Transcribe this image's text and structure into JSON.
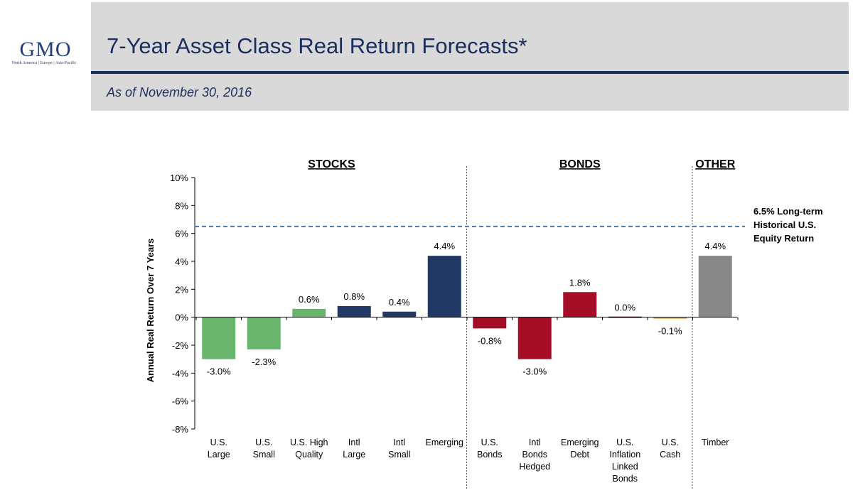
{
  "logo": {
    "text": "GMO",
    "subtext": "North America | Europe | Asia-Pacific"
  },
  "header": {
    "title": "7-Year Asset Class Real Return Forecasts*",
    "subtitle": "As of November 30, 2016"
  },
  "colors": {
    "header_bg": "#d9d9d9",
    "navy": "#1b2d5c",
    "green": "#6ab56d",
    "darkblue": "#1f3864",
    "red": "#a50d26",
    "gray": "#888888",
    "orange": "#e0a030",
    "dashed": "#4b7aa8"
  },
  "chart_data": {
    "type": "bar",
    "ylabel": "Annual Real Return Over 7 Years",
    "ylim": [
      -8,
      10
    ],
    "yticks": [
      10,
      8,
      6,
      4,
      2,
      0,
      -2,
      -4,
      -6,
      -8
    ],
    "ytick_labels": [
      "10%",
      "8%",
      "6%",
      "4%",
      "2%",
      "0%",
      "-2%",
      "-4%",
      "-6%",
      "-8%"
    ],
    "groups": [
      {
        "name": "STOCKS",
        "start": 0,
        "end": 5
      },
      {
        "name": "BONDS",
        "start": 6,
        "end": 10
      },
      {
        "name": "OTHER",
        "start": 11,
        "end": 11
      }
    ],
    "categories": [
      [
        "U.S.",
        "Large"
      ],
      [
        "U.S.",
        "Small"
      ],
      [
        "U.S. High",
        "Quality"
      ],
      [
        "Intl",
        "Large"
      ],
      [
        "Intl",
        "Small"
      ],
      [
        "Emerging"
      ],
      [
        "U.S.",
        "Bonds"
      ],
      [
        "Intl",
        "Bonds",
        "Hedged"
      ],
      [
        "Emerging",
        "Debt"
      ],
      [
        "U.S.",
        "Inflation",
        "Linked",
        "Bonds"
      ],
      [
        "U.S.",
        "Cash"
      ],
      [
        "Timber"
      ]
    ],
    "values": [
      -3.0,
      -2.3,
      0.6,
      0.8,
      0.4,
      4.4,
      -0.8,
      -3.0,
      1.8,
      0.0,
      -0.1,
      4.4
    ],
    "value_labels": [
      "-3.0%",
      "-2.3%",
      "0.6%",
      "0.8%",
      "0.4%",
      "4.4%",
      "-0.8%",
      "-3.0%",
      "1.8%",
      "0.0%",
      "-0.1%",
      "4.4%"
    ],
    "bar_colors": [
      "#6ab56d",
      "#6ab56d",
      "#6ab56d",
      "#1f3864",
      "#1f3864",
      "#1f3864",
      "#a50d26",
      "#a50d26",
      "#a50d26",
      "#a50d26",
      "#e0a030",
      "#888888"
    ],
    "reference_line": {
      "value": 6.5,
      "label": [
        "6.5% Long-term",
        "Historical U.S.",
        "Equity Return"
      ]
    }
  }
}
